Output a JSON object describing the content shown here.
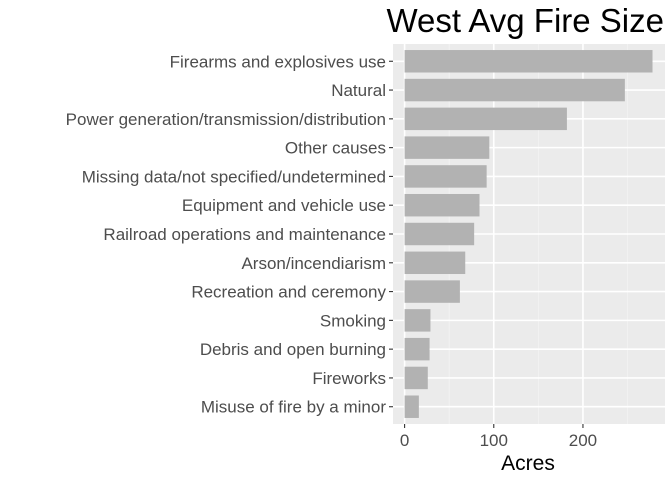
{
  "chart_data": {
    "type": "bar",
    "orientation": "horizontal",
    "title": "West Avg Fire Size",
    "xlabel": "Acres",
    "ylabel": "",
    "categories": [
      "Firearms and explosives use",
      "Natural",
      "Power generation/transmission/distribution",
      "Other causes",
      "Missing data/not specified/undetermined",
      "Equipment and vehicle use",
      "Railroad operations and maintenance",
      "Arson/incendiarism",
      "Recreation and ceremony",
      "Smoking",
      "Debris and open burning",
      "Fireworks",
      "Misuse of fire by a minor"
    ],
    "values": [
      278,
      247,
      182,
      95,
      92,
      84,
      78,
      68,
      62,
      29,
      28,
      26,
      16
    ],
    "xlim": [
      -13,
      292
    ],
    "xticks": [
      0,
      100,
      200
    ],
    "xtick_labels": [
      "0",
      "100",
      "200"
    ],
    "grid": true,
    "legend": "none",
    "colors": {
      "bar": "#b2b2b2",
      "panel": "#ebebeb",
      "grid_major": "#ffffff",
      "grid_minor": "#f3f3f3",
      "text": "#4d4d4d",
      "title": "#000000"
    }
  }
}
